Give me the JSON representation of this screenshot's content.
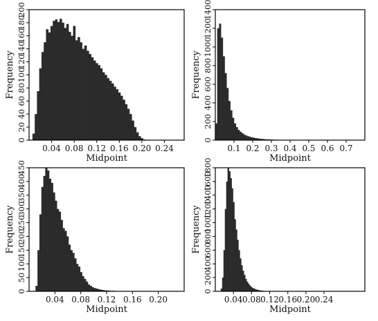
{
  "chart_data": [
    {
      "type": "bar",
      "ylabel": "Frequency",
      "xlabel": "Midpoint",
      "x_ticks": [
        "0.04",
        "0.08",
        "0.12",
        "0.16",
        "0.20",
        "0.24"
      ],
      "y_ticks": [
        "0",
        "20",
        "40",
        "60",
        "80",
        "100",
        "120",
        "140",
        "160",
        "180",
        "200"
      ],
      "xlim": [
        0,
        0.275
      ],
      "ylim": [
        0,
        200
      ],
      "bin_width": 0.004,
      "x_start": 0.006,
      "values": [
        10,
        40,
        75,
        110,
        135,
        150,
        170,
        165,
        175,
        183,
        185,
        181,
        186,
        180,
        172,
        178,
        166,
        160,
        175,
        153,
        158,
        150,
        140,
        145,
        137,
        132,
        127,
        122,
        118,
        115,
        110,
        104,
        100,
        95,
        91,
        87,
        82,
        78,
        73,
        68,
        62,
        55,
        48,
        40,
        30,
        20,
        12,
        6,
        3,
        1
      ]
    },
    {
      "type": "bar",
      "ylabel": "Frequency",
      "xlabel": "Midpoint",
      "x_ticks": [
        "0.1",
        "0.2",
        "0.3",
        "0.4",
        "0.5",
        "0.6",
        "0.7"
      ],
      "y_ticks": [
        "0",
        "200",
        "400",
        "600",
        "800",
        "1000",
        "1200",
        "1400"
      ],
      "xlim": [
        0,
        0.8
      ],
      "ylim": [
        0,
        1400
      ],
      "bin_width": 0.01,
      "x_start": 0.0,
      "values": [
        180,
        1200,
        1250,
        1100,
        900,
        720,
        560,
        420,
        320,
        240,
        180,
        140,
        110,
        90,
        75,
        60,
        50,
        42,
        36,
        30,
        26,
        22,
        19,
        16,
        14,
        12,
        10,
        9,
        8,
        7,
        6,
        5,
        5,
        4,
        4,
        3,
        3,
        3,
        2,
        2,
        2,
        2,
        1,
        1,
        1,
        1,
        1,
        1,
        1,
        1
      ]
    },
    {
      "type": "bar",
      "ylabel": "Frequency",
      "xlabel": "Midpoint",
      "x_ticks": [
        "0.04",
        "0.08",
        "0.12",
        "0.16",
        "0.20"
      ],
      "y_ticks": [
        "0",
        "50",
        "100",
        "150",
        "200",
        "250",
        "300",
        "350",
        "400",
        "450"
      ],
      "xlim": [
        0,
        0.24
      ],
      "ylim": [
        0,
        450
      ],
      "bin_width": 0.003,
      "x_start": 0.01,
      "values": [
        20,
        150,
        280,
        380,
        420,
        455,
        440,
        410,
        395,
        360,
        330,
        300,
        290,
        260,
        230,
        220,
        200,
        170,
        150,
        140,
        120,
        100,
        90,
        70,
        55,
        45,
        35,
        25,
        20,
        15,
        12,
        10,
        8,
        6,
        5,
        4,
        3,
        3,
        2,
        2,
        2,
        1,
        1,
        1,
        1
      ]
    },
    {
      "type": "bar",
      "ylabel": "Frequency",
      "xlabel": "Midpoint",
      "x_ticks": [
        "0.04",
        "0.08",
        "0.12",
        "0.16",
        "0.20",
        "0.24"
      ],
      "y_ticks": [
        "0",
        "200",
        "400",
        "600",
        "800",
        "1000",
        "1200",
        "1400",
        "1600",
        "1800"
      ],
      "xlim": [
        0,
        0.33
      ],
      "ylim": [
        0,
        1800
      ],
      "bin_width": 0.003,
      "x_start": 0.012,
      "values": [
        40,
        200,
        600,
        1200,
        1600,
        1800,
        1750,
        1650,
        1500,
        1300,
        1050,
        900,
        750,
        600,
        480,
        380,
        300,
        240,
        180,
        140,
        110,
        85,
        65,
        50,
        40,
        32,
        25,
        20,
        15,
        12,
        10,
        8,
        6,
        5,
        4,
        3,
        3,
        2,
        2,
        2,
        1,
        1,
        1,
        1,
        1
      ]
    }
  ]
}
